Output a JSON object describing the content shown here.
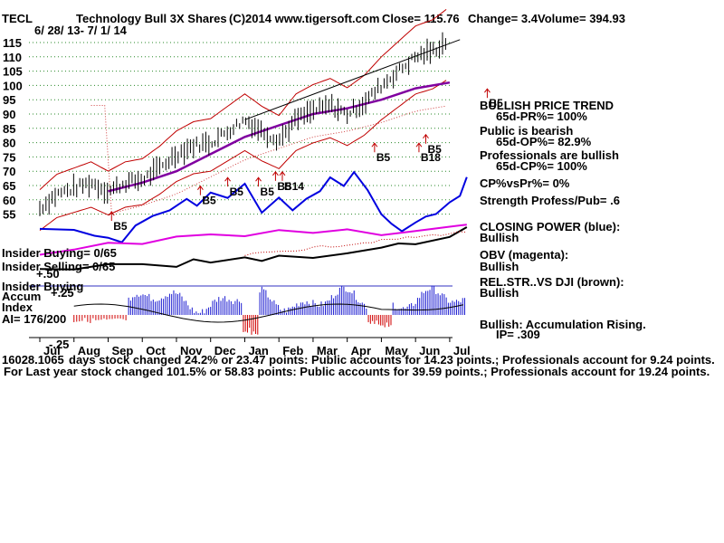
{
  "header": {
    "ticker": "TECL",
    "name": "Technology Bull 3X Shares",
    "copyright": "(C)2014 www.tigersoft.com",
    "close": "Close=  115.76",
    "change": "Change= 3.4",
    "volume": "Volume= 394.93",
    "date_range": "6/ 28/ 13-  7/ 1/ 14"
  },
  "right_panel": {
    "bullish_trend": "BULLISH PRICE TREND",
    "pr": "65d-PR%= 100%",
    "public": "Public is bearish",
    "op": "65d-OP%= 82.9%",
    "pros": "Professionals are bullish",
    "cp": "65d-CP%= 100%",
    "cpvspr": "CP%vsPr%=  0%",
    "strength": "Strength Profess/Pub= .6",
    "closing_power": "CLOSING POWER (blue):",
    "closing_power_state": "Bullish",
    "obv": "OBV (magenta):",
    "obv_state": "Bullish",
    "relstr": "REL.STR..VS DJI (brown):",
    "relstr_state": "Bullish",
    "accum": "Bullish: Accumulation Rising.",
    "ip": "IP=  .309"
  },
  "left_panel": {
    "insider_buying": "Insider Buying= 0/65",
    "insider_selling": "Insider Selling= 0/65",
    "plus50": "+.50",
    "insider_buying2": "Insider Buying",
    "accum": "Accum",
    "plus25": "+.25",
    "index": "Index",
    "ai": "AI= 176/200",
    "minus25": "-.25"
  },
  "footer": {
    "line1_prefix": "16028.1065",
    "line1": "days stock changed  24.2% or  23.47 points:  Public accounts for  14.23 points.;  Professionals account for  9.24 points.",
    "line2": "For Last year stock changed  101.5% or  58.83 points:  Public accounts for  39.59 points.;  Professionals account for  19.24 points."
  },
  "chart_data": {
    "type": "line",
    "title": "Technology Bull 3X Shares",
    "x_months": [
      "Jul",
      "Aug",
      "Sep",
      "Oct",
      "Nov",
      "Dec",
      "Jan",
      "Feb",
      "Mar",
      "Apr",
      "May",
      "Jun",
      "Jul"
    ],
    "y_ticks": [
      55,
      60,
      65,
      70,
      75,
      80,
      85,
      90,
      95,
      100,
      105,
      110,
      115
    ],
    "ylim": [
      50,
      120
    ],
    "grid": true,
    "price_path": [
      [
        0,
        57
      ],
      [
        0.5,
        62
      ],
      [
        1,
        64
      ],
      [
        1.5,
        66
      ],
      [
        2,
        63
      ],
      [
        2.5,
        66
      ],
      [
        3,
        67
      ],
      [
        3.5,
        71
      ],
      [
        4,
        76
      ],
      [
        4.5,
        79
      ],
      [
        5,
        80
      ],
      [
        5.5,
        84
      ],
      [
        6,
        88
      ],
      [
        6.5,
        84
      ],
      [
        7,
        81
      ],
      [
        7.5,
        88
      ],
      [
        8,
        91
      ],
      [
        8.5,
        93
      ],
      [
        9,
        90
      ],
      [
        9.5,
        94
      ],
      [
        10,
        100
      ],
      [
        10.5,
        105
      ],
      [
        11,
        110
      ],
      [
        11.5,
        112
      ],
      [
        11.95,
        115.76
      ]
    ],
    "ma_path": [
      [
        2,
        63
      ],
      [
        3,
        66
      ],
      [
        4,
        70
      ],
      [
        5,
        76
      ],
      [
        6,
        82
      ],
      [
        7,
        86
      ],
      [
        8,
        90
      ],
      [
        9,
        92
      ],
      [
        10,
        95
      ],
      [
        11,
        99
      ],
      [
        12,
        101
      ]
    ],
    "trendline": [
      [
        6,
        88
      ],
      [
        12.3,
        116
      ]
    ],
    "signals": [
      {
        "label": "B5",
        "month": 2.1,
        "y": 52
      },
      {
        "label": "B5",
        "month": 4.7,
        "y": 61
      },
      {
        "label": "B5",
        "month": 5.5,
        "y": 64
      },
      {
        "label": "B5",
        "month": 6.4,
        "y": 64
      },
      {
        "label": "B5",
        "month": 6.9,
        "y": 66
      },
      {
        "label": "B14",
        "month": 7.1,
        "y": 66
      },
      {
        "label": "B5",
        "month": 9.8,
        "y": 76
      },
      {
        "label": "B18",
        "month": 11.1,
        "y": 76
      },
      {
        "label": "B5",
        "month": 11.3,
        "y": 79
      },
      {
        "label": "B5",
        "month": 13.1,
        "y": 95
      }
    ]
  }
}
